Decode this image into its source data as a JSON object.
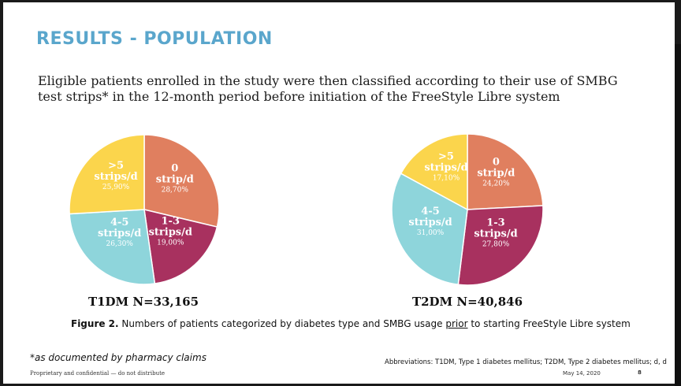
{
  "slide": {
    "title": "RESULTS - POPULATION",
    "intro": "Eligible patients enrolled in the study were then classified according to their use of SMBG test strips* in the 12-month period before initiation of the FreeStyle Libre system",
    "figure_caption": {
      "lead": "Figure 2.",
      "before": " Numbers of patients categorized by diabetes type and SMBG usage ",
      "underlined": "prior",
      "after": " to starting FreeStyle Libre system"
    },
    "footnote": "*as documented by pharmacy claims",
    "abbreviations": "Abbreviations: T1DM, Type 1 diabetes mellitus; T2DM, Type 2 diabetes mellitus; d, d",
    "confidential": "Proprietary and confidential — do not distribute",
    "date": "May 14, 2020",
    "page_number": "8"
  },
  "colors": {
    "zero": "#e07f5f",
    "one_three": "#a8315f",
    "four_five": "#8ed5db",
    "five_plus": "#fbd54c"
  },
  "chart_data": [
    {
      "type": "pie",
      "title": "T1DM N=33,165",
      "slices": [
        {
          "label_lines": [
            "0",
            "strip/d"
          ],
          "pct_label": "28,70%",
          "value": 28.7,
          "color_key": "zero"
        },
        {
          "label_lines": [
            "1-3",
            "strips/d"
          ],
          "pct_label": "19,00%",
          "value": 19.0,
          "color_key": "one_three"
        },
        {
          "label_lines": [
            "4-5",
            "strips/d"
          ],
          "pct_label": "26,30%",
          "value": 26.3,
          "color_key": "four_five"
        },
        {
          "label_lines": [
            ">5",
            "strips/d"
          ],
          "pct_label": "25,90%",
          "value": 25.9,
          "color_key": "five_plus"
        }
      ]
    },
    {
      "type": "pie",
      "title": "T2DM N=40,846",
      "slices": [
        {
          "label_lines": [
            "0",
            "strip/d"
          ],
          "pct_label": "24,20%",
          "value": 24.2,
          "color_key": "zero"
        },
        {
          "label_lines": [
            "1-3",
            "strips/d"
          ],
          "pct_label": "27,80%",
          "value": 27.8,
          "color_key": "one_three"
        },
        {
          "label_lines": [
            "4-5",
            "strips/d"
          ],
          "pct_label": "31,00%",
          "value": 31.0,
          "color_key": "four_five"
        },
        {
          "label_lines": [
            ">5",
            "strips/d"
          ],
          "pct_label": "17,10%",
          "value": 17.1,
          "color_key": "five_plus"
        }
      ]
    }
  ]
}
